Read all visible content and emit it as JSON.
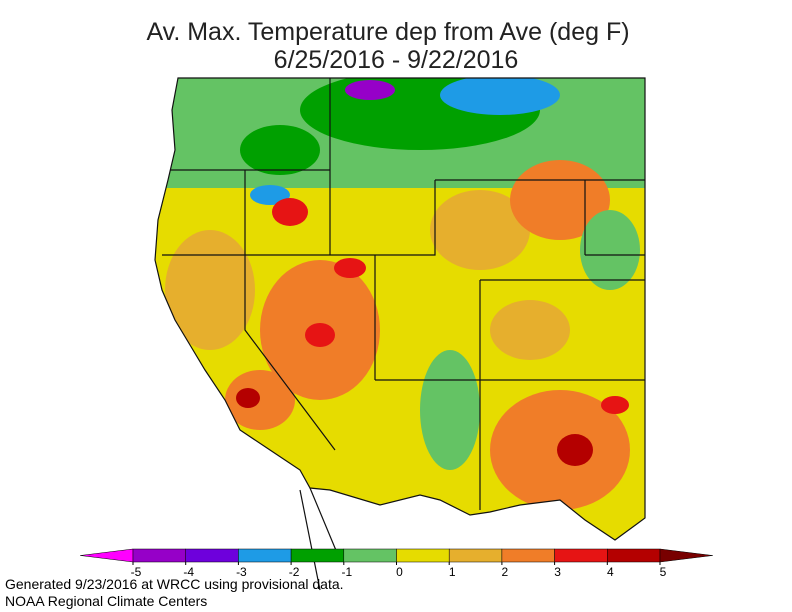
{
  "title": "Av. Max. Temperature dep from Ave (deg F)",
  "subtitle": "6/25/2016 - 9/22/2016",
  "colorbar": {
    "ticks": [
      -5,
      -4,
      -3,
      -2,
      -1,
      0,
      1,
      2,
      3,
      4,
      5
    ],
    "under_color": "#ff00ff",
    "colors": [
      "#9600c8",
      "#6e00dc",
      "#1e9be6",
      "#00a000",
      "#64c364",
      "#e6dc00",
      "#e6af2d",
      "#f07d28",
      "#e61414",
      "#b40000"
    ],
    "over_color": "#780000"
  },
  "footer": [
    "Generated 9/23/2016 at WRCC using provisional data.",
    "NOAA Regional Climate Centers"
  ]
}
